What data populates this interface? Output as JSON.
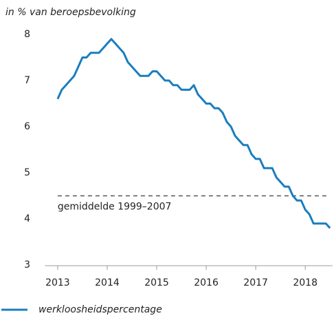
{
  "chart_data": {
    "type": "line",
    "ylabel": "in % van beroepsbevolking",
    "x": [
      2013,
      2013.083,
      2013.167,
      2013.25,
      2013.333,
      2013.417,
      2013.5,
      2013.583,
      2013.667,
      2013.75,
      2013.833,
      2013.917,
      2014,
      2014.083,
      2014.167,
      2014.25,
      2014.333,
      2014.417,
      2014.5,
      2014.583,
      2014.667,
      2014.75,
      2014.833,
      2014.917,
      2015,
      2015.083,
      2015.167,
      2015.25,
      2015.333,
      2015.417,
      2015.5,
      2015.583,
      2015.667,
      2015.75,
      2015.833,
      2015.917,
      2016,
      2016.083,
      2016.167,
      2016.25,
      2016.333,
      2016.417,
      2016.5,
      2016.583,
      2016.667,
      2016.75,
      2016.833,
      2016.917,
      2017,
      2017.083,
      2017.167,
      2017.25,
      2017.333,
      2017.417,
      2017.5,
      2017.583,
      2017.667,
      2017.75,
      2017.833,
      2017.917,
      2018,
      2018.083,
      2018.167,
      2018.25,
      2018.333,
      2018.417,
      2018.5
    ],
    "series": [
      {
        "name": "werkloosheidspercentage",
        "color": "#1a7dc0",
        "values": [
          6.6,
          6.8,
          6.9,
          7.0,
          7.1,
          7.3,
          7.5,
          7.5,
          7.6,
          7.6,
          7.6,
          7.7,
          7.8,
          7.9,
          7.8,
          7.7,
          7.6,
          7.4,
          7.3,
          7.2,
          7.1,
          7.1,
          7.1,
          7.2,
          7.2,
          7.1,
          7.0,
          7.0,
          6.9,
          6.9,
          6.8,
          6.8,
          6.8,
          6.9,
          6.7,
          6.6,
          6.5,
          6.5,
          6.4,
          6.4,
          6.3,
          6.1,
          6.0,
          5.8,
          5.7,
          5.6,
          5.6,
          5.4,
          5.3,
          5.3,
          5.1,
          5.1,
          5.1,
          4.9,
          4.8,
          4.7,
          4.7,
          4.5,
          4.4,
          4.4,
          4.2,
          4.1,
          3.9,
          3.9,
          3.9,
          3.9,
          3.8
        ]
      }
    ],
    "reference_line": {
      "label": "gemiddelde 1999–2007",
      "value": 4.5
    },
    "xlim": [
      2012.8,
      2018.55
    ],
    "xticks": [
      2013,
      2014,
      2015,
      2016,
      2017,
      2018
    ],
    "ylim": [
      3,
      8
    ],
    "yticks": [
      3,
      4,
      5,
      6,
      7,
      8
    ],
    "grid": false
  }
}
